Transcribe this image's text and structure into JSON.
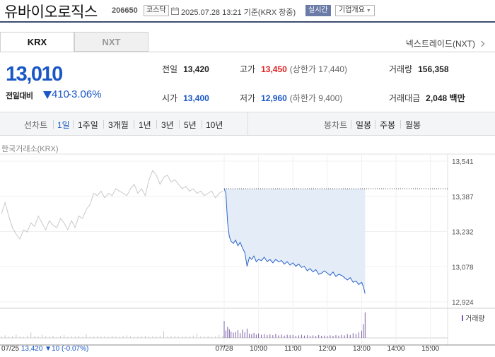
{
  "header": {
    "company_name": "유바이오로직스",
    "stock_code": "206650",
    "market_badge": "코스닥",
    "timestamp": "2025.07.28 13:21 기준(KRX 장중)",
    "realtime_label": "실시간",
    "overview_label": "기업개요"
  },
  "market_tabs": [
    {
      "label": "KRX",
      "active": true
    },
    {
      "label": "NXT",
      "active": false
    }
  ],
  "nxt_link": "넥스트레이드(NXT)",
  "summary": {
    "current_price": "13,010",
    "change_label": "전일대비",
    "change_amount": "410",
    "change_percent": "-3.06%",
    "prev_close": {
      "label": "전일",
      "value": "13,420"
    },
    "high": {
      "label": "고가",
      "value": "13,450",
      "limit": "(상한가 17,440)"
    },
    "volume": {
      "label": "거래량",
      "value": "156,358"
    },
    "open": {
      "label": "시가",
      "value": "13,400"
    },
    "low": {
      "label": "저가",
      "value": "12,960",
      "limit": "(하한가 9,400)"
    },
    "trade_value": {
      "label": "거래대금",
      "value": "2,048 백만"
    }
  },
  "period_bar": {
    "line_label": "선차트",
    "line_periods": [
      "1일",
      "1주일",
      "3개월",
      "1년",
      "3년",
      "5년",
      "10년"
    ],
    "active_period": "1일",
    "candle_label": "봉차트",
    "candle_periods": [
      "일봉",
      "주봉",
      "월봉"
    ]
  },
  "exchange_label": "한국거래소(KRX)",
  "colors": {
    "up": "#e01f1f",
    "down": "#1a57c6",
    "today_line": "#2a63c8",
    "prev_line": "#c8c8c8",
    "fill": "#e4ecf8",
    "volume_bar": "#7c5fa8"
  },
  "chart_data": {
    "type": "line",
    "ylim": [
      12924,
      13541
    ],
    "y_ticks": [
      "13,541",
      "13,387",
      "13,232",
      "13,078",
      "12,924"
    ],
    "x_ticks": [
      "07/28",
      "10:00",
      "11:00",
      "12:00",
      "13:00",
      "14:00",
      "15:00"
    ],
    "x_ticks_minutes": [
      540,
      600,
      660,
      720,
      780,
      840,
      900
    ],
    "x_range_minutes": [
      540,
      930
    ],
    "reference_price": 13420,
    "volume_legend": "거래량",
    "prev_day_footer": {
      "date": "07/25",
      "close": "13,420",
      "change": "10",
      "change_percent": "(-0.07%)"
    },
    "series": [
      {
        "values": [
          13310,
          13360,
          13300,
          13250,
          13220,
          13200,
          13240,
          13230,
          13270,
          13255,
          13300,
          13270,
          13240,
          13280,
          13260,
          13250,
          13290,
          13270,
          13240,
          13280,
          13250,
          13300,
          13290,
          13330,
          13350,
          13400,
          13390,
          13410,
          13380,
          13400,
          13390,
          13420,
          13410,
          13400,
          13390,
          13420,
          13440,
          13400,
          13420,
          13390,
          13460,
          13500,
          13480,
          13440,
          13470,
          13480,
          13450,
          13460,
          13440,
          13420,
          13430,
          13410,
          13420,
          13400,
          13410,
          13390,
          13400,
          13410,
          13380,
          13400,
          13410
        ]
      },
      {
        "times": [
          540,
          543,
          546,
          549,
          552,
          556,
          560,
          564,
          568,
          572,
          576,
          580,
          584,
          588,
          592,
          596,
          600,
          605,
          610,
          615,
          620,
          625,
          630,
          635,
          640,
          645,
          650,
          655,
          660,
          665,
          670,
          675,
          680,
          685,
          690,
          695,
          700,
          705,
          710,
          715,
          720,
          725,
          730,
          735,
          740,
          745,
          750,
          755,
          760,
          765,
          770,
          775,
          780,
          783,
          786
        ],
        "values": [
          13420,
          13400,
          13270,
          13210,
          13190,
          13180,
          13195,
          13170,
          13185,
          13160,
          13140,
          13080,
          13120,
          13110,
          13125,
          13100,
          13110,
          13105,
          13120,
          13100,
          13110,
          13095,
          13110,
          13100,
          13105,
          13090,
          13100,
          13085,
          13095,
          13080,
          13090,
          13075,
          13080,
          13060,
          13070,
          13055,
          13065,
          13045,
          13050,
          13060,
          13050,
          13040,
          13055,
          13035,
          13045,
          13040,
          13030,
          13020,
          13030,
          13010,
          13015,
          13000,
          13010,
          12990,
          12960
        ]
      }
    ],
    "volume": {
      "times": [
        540,
        543,
        546,
        549,
        552,
        556,
        560,
        564,
        568,
        572,
        576,
        580,
        584,
        588,
        592,
        596,
        600,
        605,
        610,
        615,
        620,
        625,
        630,
        635,
        640,
        645,
        650,
        655,
        660,
        665,
        670,
        675,
        680,
        685,
        690,
        695,
        700,
        705,
        710,
        715,
        720,
        725,
        730,
        735,
        740,
        745,
        750,
        755,
        760,
        765,
        770,
        775,
        780,
        783,
        786
      ],
      "values": [
        8000,
        3500,
        5200,
        4100,
        3000,
        2500,
        2800,
        3600,
        2200,
        3900,
        2600,
        4400,
        2000,
        1800,
        2400,
        1600,
        2100,
        1500,
        1800,
        1400,
        1700,
        1300,
        1900,
        1200,
        1600,
        1100,
        1500,
        1300,
        1400,
        1000,
        1200,
        1500,
        1100,
        1300,
        1000,
        1200,
        900,
        1400,
        1000,
        1100,
        900,
        1200,
        1000,
        1300,
        1100,
        1500,
        1200,
        1800,
        1400,
        2200,
        1900,
        2600,
        3400,
        6500,
        12000
      ]
    },
    "prev_volume": [
      800,
      1200,
      600,
      900,
      1500,
      700,
      500,
      1100,
      2600,
      900,
      600,
      1400,
      800,
      700,
      1000,
      500,
      900,
      1300,
      600,
      800,
      700,
      1000,
      500,
      1800,
      600,
      700,
      900,
      600,
      800,
      500,
      1100,
      700,
      600,
      900,
      1200,
      800,
      600,
      700,
      900,
      1000,
      700,
      800,
      600,
      900,
      3200,
      700,
      800,
      1000,
      600,
      800,
      700,
      900,
      1100,
      2000,
      700,
      800,
      900,
      600,
      700,
      1500,
      900
    ]
  }
}
